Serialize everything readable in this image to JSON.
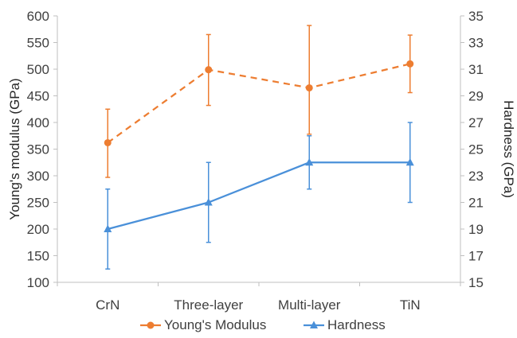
{
  "chart_data": {
    "type": "line",
    "categories": [
      "CrN",
      "Three-layer",
      "Multi-layer",
      "TiN"
    ],
    "ylabel": "Young's modulus (GPa)",
    "y2label": "Hardness (GPa)",
    "ylim": [
      100,
      600
    ],
    "yticks": [
      100,
      150,
      200,
      250,
      300,
      350,
      400,
      450,
      500,
      550,
      600
    ],
    "y2lim": [
      15,
      35
    ],
    "y2ticks": [
      15,
      17,
      19,
      21,
      23,
      25,
      27,
      29,
      31,
      33,
      35
    ],
    "grid": false,
    "legend_position": "bottom",
    "series": [
      {
        "name": "Young's Modulus",
        "axis": "left",
        "color": "#ED7D31",
        "line_style": "dashed",
        "marker": "circle",
        "values": [
          362,
          499,
          465,
          510
        ],
        "err_low": [
          297,
          432,
          378,
          456
        ],
        "err_high": [
          425,
          565,
          582,
          564
        ]
      },
      {
        "name": "Hardness",
        "axis": "right",
        "color": "#4A90D9",
        "line_style": "solid",
        "marker": "triangle",
        "values": [
          19,
          21,
          24,
          24
        ],
        "err_low": [
          16,
          18,
          22,
          21
        ],
        "err_high": [
          22,
          24,
          26,
          27
        ]
      }
    ]
  }
}
